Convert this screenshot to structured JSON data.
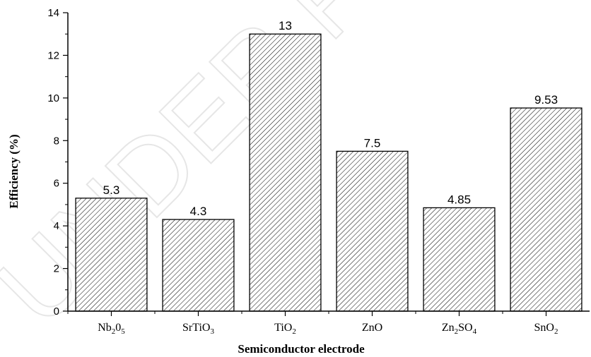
{
  "watermark": "UNDER PEER",
  "chart_data": {
    "type": "bar",
    "title": "",
    "xlabel": "Semiconductor electrode",
    "ylabel": "Efficiency (%)",
    "ylim": [
      0,
      14
    ],
    "yticks": [
      "0",
      "2",
      "4",
      "6",
      "8",
      "10",
      "12",
      "14"
    ],
    "categories": [
      {
        "base": "Nb",
        "sub1": "2",
        "mid": "0",
        "sub2": "5"
      },
      {
        "base": "SrTiO",
        "sub1": "3",
        "mid": "",
        "sub2": ""
      },
      {
        "base": "TiO",
        "sub1": "2",
        "mid": "",
        "sub2": ""
      },
      {
        "base": "ZnO",
        "sub1": "",
        "mid": "",
        "sub2": ""
      },
      {
        "base": "Zn",
        "sub1": "2",
        "mid": "SO",
        "sub2": "4"
      },
      {
        "base": "SnO",
        "sub1": "2",
        "mid": "",
        "sub2": ""
      }
    ],
    "values": [
      5.3,
      4.3,
      13,
      7.5,
      4.85,
      9.53
    ],
    "data_labels": [
      "5.3",
      "4.3",
      "13",
      "7.5",
      "4.85",
      "9.53"
    ],
    "bar_fill": "hatched",
    "grid": false,
    "colors": {
      "bar_stroke": "#000000",
      "hatch": "#000000"
    }
  }
}
